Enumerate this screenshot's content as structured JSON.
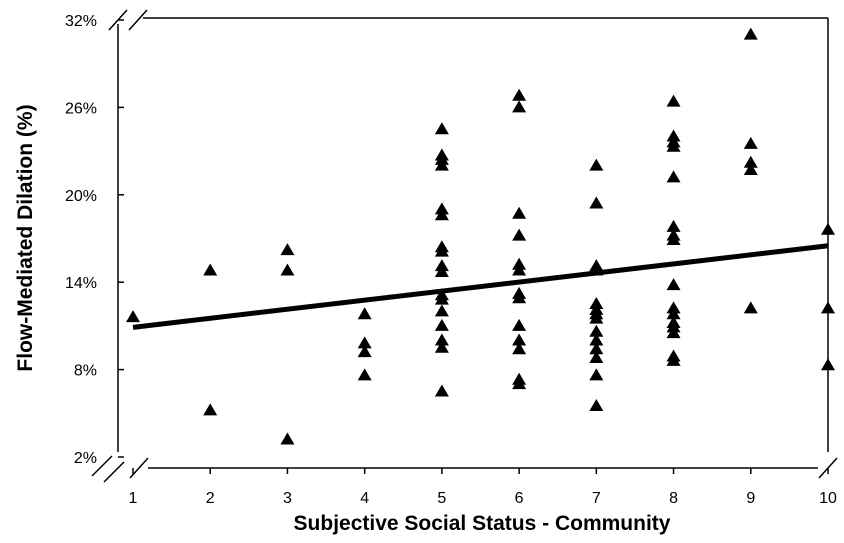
{
  "chart_data": {
    "type": "scatter",
    "title": "",
    "xlabel": "Subjective Social Status - Community",
    "ylabel": "Flow-Mediated Dilation (%)",
    "xlim": [
      1,
      10
    ],
    "ylim": [
      2,
      32
    ],
    "axis_breaks": true,
    "grid": false,
    "x_ticks": [
      1,
      2,
      3,
      4,
      5,
      6,
      7,
      8,
      9,
      10
    ],
    "y_ticks": [
      2,
      8,
      14,
      20,
      26,
      32
    ],
    "y_tick_labels": [
      "2%",
      "8%",
      "14%",
      "20%",
      "26%",
      "32%"
    ],
    "marker": "triangle",
    "series": [
      {
        "points": [
          [
            1,
            11.6
          ],
          [
            2,
            14.8
          ],
          [
            2,
            5.2
          ],
          [
            3,
            16.2
          ],
          [
            3,
            14.8
          ],
          [
            3,
            3.2
          ],
          [
            4,
            11.8
          ],
          [
            4,
            9.8
          ],
          [
            4,
            9.2
          ],
          [
            4,
            7.6
          ],
          [
            5,
            24.5
          ],
          [
            5,
            22.7
          ],
          [
            5,
            22.4
          ],
          [
            5,
            22.0
          ],
          [
            5,
            19.0
          ],
          [
            5,
            18.6
          ],
          [
            5,
            16.4
          ],
          [
            5,
            16.1
          ],
          [
            5,
            15.1
          ],
          [
            5,
            14.7
          ],
          [
            5,
            13.1
          ],
          [
            5,
            12.8
          ],
          [
            5,
            12.0
          ],
          [
            5,
            11.0
          ],
          [
            5,
            10.0
          ],
          [
            5,
            9.5
          ],
          [
            5,
            6.5
          ],
          [
            6,
            26.8
          ],
          [
            6,
            26.0
          ],
          [
            6,
            18.7
          ],
          [
            6,
            17.2
          ],
          [
            6,
            15.2
          ],
          [
            6,
            14.8
          ],
          [
            6,
            13.2
          ],
          [
            6,
            12.9
          ],
          [
            6,
            11.0
          ],
          [
            6,
            10.0
          ],
          [
            6,
            9.4
          ],
          [
            6,
            7.3
          ],
          [
            6,
            7.0
          ],
          [
            7,
            22.0
          ],
          [
            7,
            19.4
          ],
          [
            7,
            15.1
          ],
          [
            7,
            14.8
          ],
          [
            7,
            12.5
          ],
          [
            7,
            12.1
          ],
          [
            7,
            11.8
          ],
          [
            7,
            11.5
          ],
          [
            7,
            10.6
          ],
          [
            7,
            10.0
          ],
          [
            7,
            9.4
          ],
          [
            7,
            8.8
          ],
          [
            7,
            7.6
          ],
          [
            7,
            5.5
          ],
          [
            8,
            26.4
          ],
          [
            8,
            24.0
          ],
          [
            8,
            23.6
          ],
          [
            8,
            23.3
          ],
          [
            8,
            21.2
          ],
          [
            8,
            17.8
          ],
          [
            8,
            17.2
          ],
          [
            8,
            16.9
          ],
          [
            8,
            13.8
          ],
          [
            8,
            12.2
          ],
          [
            8,
            11.8
          ],
          [
            8,
            11.2
          ],
          [
            8,
            10.9
          ],
          [
            8,
            10.5
          ],
          [
            8,
            8.9
          ],
          [
            8,
            8.6
          ],
          [
            9,
            31.0
          ],
          [
            9,
            23.5
          ],
          [
            9,
            22.2
          ],
          [
            9,
            21.7
          ],
          [
            9,
            12.2
          ],
          [
            10,
            17.6
          ],
          [
            10,
            12.2
          ],
          [
            10,
            8.3
          ]
        ]
      }
    ],
    "trendline": {
      "x": [
        1,
        10
      ],
      "y": [
        10.9,
        16.5
      ]
    }
  }
}
